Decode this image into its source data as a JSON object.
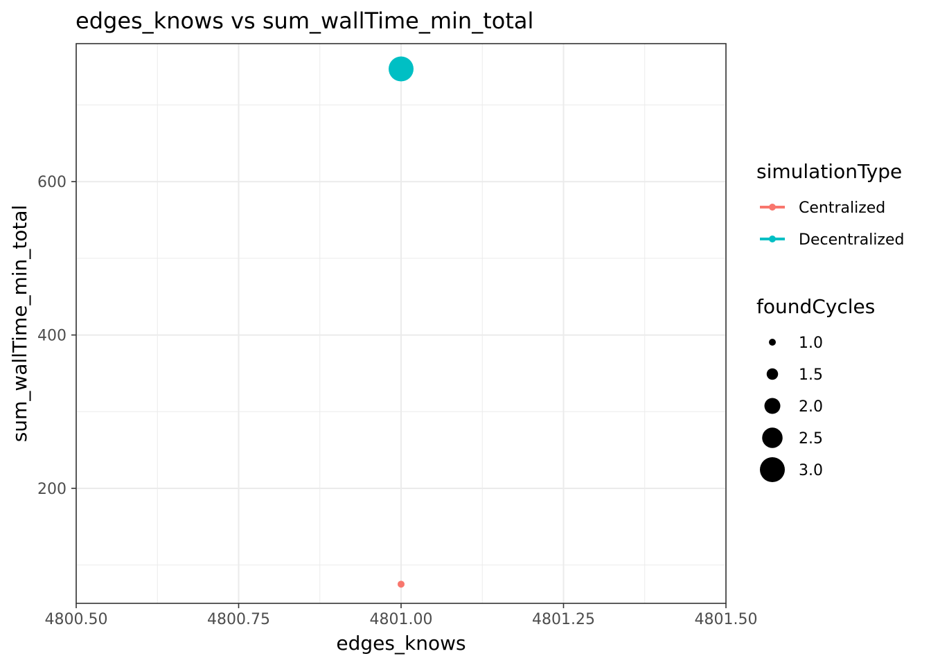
{
  "chart_data": {
    "type": "scatter",
    "title": "edges_knows  vs  sum_wallTime_min_total",
    "xlabel": "edges_knows",
    "ylabel": "sum_wallTime_min_total",
    "xlim": [
      4800.5,
      4801.5
    ],
    "ylim": [
      50,
      780
    ],
    "x_ticks": [
      4800.5,
      4800.75,
      4801.0,
      4801.25,
      4801.5
    ],
    "x_tick_labels": [
      "4800.50",
      "4800.75",
      "4801.00",
      "4801.25",
      "4801.50"
    ],
    "y_ticks": [
      200,
      400,
      600
    ],
    "y_tick_labels": [
      "200",
      "400",
      "600"
    ],
    "grid": true,
    "legend_placement": "right",
    "color_legend": {
      "title": "simulationType",
      "entries": [
        {
          "label": "Centralized",
          "color": "#F8766D"
        },
        {
          "label": "Decentralized",
          "color": "#00BFC4"
        }
      ]
    },
    "size_legend": {
      "title": "foundCycles",
      "values": [
        1.0,
        1.5,
        2.0,
        2.5,
        3.0
      ],
      "labels": [
        "1.0",
        "1.5",
        "2.0",
        "2.5",
        "3.0"
      ]
    },
    "series": [
      {
        "name": "Centralized",
        "color": "#F8766D",
        "points": [
          {
            "x": 4801.0,
            "y": 75,
            "foundCycles": 1
          }
        ]
      },
      {
        "name": "Decentralized",
        "color": "#00BFC4",
        "points": [
          {
            "x": 4801.0,
            "y": 747,
            "foundCycles": 3
          }
        ]
      }
    ]
  }
}
